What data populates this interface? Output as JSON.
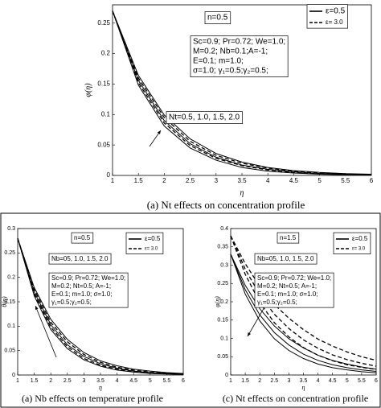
{
  "chart_data": [
    {
      "type": "line",
      "caption": "(a) Nt effects on concentration profile",
      "xlabel": "η",
      "ylabel": "φ(η)",
      "x": [
        1,
        1.5,
        2,
        2.5,
        3,
        3.5,
        4,
        4.5,
        5,
        5.5,
        6
      ],
      "xlim": [
        1,
        6
      ],
      "xticks": [
        1,
        1.5,
        2,
        2.5,
        3,
        3.5,
        4,
        4.5,
        5,
        5.5,
        6
      ],
      "ylim": [
        0,
        0.28
      ],
      "yticks": [
        0,
        0.05,
        0.1,
        0.15,
        0.2,
        0.25
      ],
      "series": [
        {
          "name": "ε=0.5",
          "color": "#000000",
          "dashed": false,
          "values": [
            0.27,
            0.164,
            0.099,
            0.06,
            0.036,
            0.022,
            0.013,
            0.008,
            0.005,
            0.003,
            0.002
          ]
        },
        {
          "color": "#000000",
          "dashed": false,
          "values": [
            0.27,
            0.156,
            0.09,
            0.052,
            0.03,
            0.017,
            0.01,
            0.006,
            0.003,
            0.002,
            0.001
          ]
        },
        {
          "color": "#000000",
          "dashed": false,
          "values": [
            0.27,
            0.148,
            0.081,
            0.045,
            0.025,
            0.013,
            0.007,
            0.004,
            0.002,
            0.001,
            0.001
          ]
        },
        {
          "name": "ε= 3.0",
          "color": "#000000",
          "dashed": true,
          "values": [
            0.27,
            0.16,
            0.095,
            0.056,
            0.033,
            0.02,
            0.012,
            0.007,
            0.004,
            0.002,
            0.001
          ]
        },
        {
          "color": "#000000",
          "dashed": true,
          "values": [
            0.27,
            0.152,
            0.086,
            0.049,
            0.028,
            0.016,
            0.009,
            0.005,
            0.003,
            0.002,
            0.001
          ]
        }
      ],
      "annotations": [
        {
          "lines": [
            "n=0.5"
          ]
        },
        {
          "lines": [
            "Sc=0.9; Pr=0.72; We=1.0;",
            "M=0.2; Nb=0.1;A=-1;",
            "E=0.1; m=1.0;",
            "σ=1.0; γ₁=0.5;γ₂=0.5;"
          ]
        },
        {
          "lines": [
            "Nt=0.5, 1.0, 1.5, 2.0"
          ]
        }
      ]
    },
    {
      "type": "line",
      "caption": "(a) Nb effects on temperature profile",
      "xlabel": "η",
      "ylabel": "θ(η)",
      "x": [
        1,
        1.5,
        2,
        2.5,
        3,
        3.5,
        4,
        4.5,
        5,
        5.5,
        6
      ],
      "xlim": [
        1,
        6
      ],
      "xticks": [
        1,
        1.5,
        2,
        2.5,
        3,
        3.5,
        4,
        4.5,
        5,
        5.5,
        6
      ],
      "ylim": [
        0,
        0.3
      ],
      "yticks": [
        0,
        0.05,
        0.1,
        0.15,
        0.2,
        0.25,
        0.3
      ],
      "series": [
        {
          "name": "ε=0.5",
          "color": "#000000",
          "dashed": false,
          "values": [
            0.28,
            0.179,
            0.114,
            0.073,
            0.046,
            0.029,
            0.019,
            0.012,
            0.008,
            0.005,
            0.003
          ]
        },
        {
          "color": "#000000",
          "dashed": false,
          "values": [
            0.28,
            0.17,
            0.103,
            0.062,
            0.038,
            0.023,
            0.014,
            0.008,
            0.005,
            0.003,
            0.002
          ]
        },
        {
          "color": "#000000",
          "dashed": false,
          "values": [
            0.28,
            0.162,
            0.093,
            0.054,
            0.031,
            0.018,
            0.01,
            0.006,
            0.003,
            0.002,
            0.001
          ]
        },
        {
          "name": "ε= 3.0",
          "color": "#000000",
          "dashed": true,
          "values": [
            0.28,
            0.175,
            0.108,
            0.068,
            0.042,
            0.026,
            0.016,
            0.01,
            0.006,
            0.004,
            0.002
          ]
        },
        {
          "color": "#000000",
          "dashed": true,
          "values": [
            0.28,
            0.166,
            0.098,
            0.058,
            0.034,
            0.02,
            0.012,
            0.007,
            0.004,
            0.003,
            0.002
          ]
        }
      ],
      "annotations": [
        {
          "lines": [
            "n=0.5"
          ]
        },
        {
          "lines": [
            "Nb=05, 1.0, 1.5, 2.0"
          ]
        },
        {
          "lines": [
            "Sc=0.9; Pr=0.72; We=1.0;",
            "M=0.2; Nt=0.5; A=-1;",
            "E=0.1; m=1.0; σ=1.0;",
            "γ₁=0.5;γ₂=0.5;"
          ]
        }
      ]
    },
    {
      "type": "line",
      "caption": "(c) Nt effects on concentration profile",
      "xlabel": "η",
      "ylabel": "φ(η)",
      "x": [
        1,
        1.5,
        2,
        2.5,
        3,
        3.5,
        4,
        4.5,
        5,
        5.5,
        6
      ],
      "xlim": [
        1,
        6
      ],
      "xticks": [
        1,
        1.5,
        2,
        2.5,
        3,
        3.5,
        4,
        4.5,
        5,
        5.5,
        6
      ],
      "ylim": [
        0,
        0.4
      ],
      "yticks": [
        0,
        0.05,
        0.1,
        0.15,
        0.2,
        0.25,
        0.3,
        0.35,
        0.4
      ],
      "series": [
        {
          "name": "ε=0.5",
          "color": "#000000",
          "dashed": false,
          "values": [
            0.33,
            0.245,
            0.181,
            0.134,
            0.099,
            0.074,
            0.054,
            0.04,
            0.03,
            0.022,
            0.016
          ]
        },
        {
          "color": "#000000",
          "dashed": false,
          "values": [
            0.33,
            0.233,
            0.164,
            0.116,
            0.082,
            0.057,
            0.04,
            0.028,
            0.02,
            0.014,
            0.01
          ]
        },
        {
          "color": "#000000",
          "dashed": false,
          "values": [
            0.33,
            0.221,
            0.148,
            0.099,
            0.067,
            0.045,
            0.03,
            0.02,
            0.014,
            0.009,
            0.006
          ]
        },
        {
          "name": "ε= 3.0",
          "color": "#000000",
          "dashed": true,
          "values": [
            0.38,
            0.304,
            0.242,
            0.193,
            0.155,
            0.124,
            0.098,
            0.079,
            0.063,
            0.05,
            0.04
          ]
        },
        {
          "color": "#000000",
          "dashed": true,
          "values": [
            0.38,
            0.289,
            0.219,
            0.166,
            0.127,
            0.096,
            0.073,
            0.055,
            0.042,
            0.032,
            0.024
          ]
        },
        {
          "color": "#000000",
          "dashed": true,
          "values": [
            0.38,
            0.275,
            0.198,
            0.143,
            0.104,
            0.075,
            0.054,
            0.039,
            0.028,
            0.021,
            0.015
          ]
        }
      ],
      "annotations": [
        {
          "lines": [
            "n=1.5"
          ]
        },
        {
          "lines": [
            "Nb=05, 1.0, 1.5, 2.0"
          ]
        },
        {
          "lines": [
            "Sc=0.9; Pr=0.72; We=1.0;",
            "M=0.2; Nt=0.5; A=-1;",
            "E=0.1; m=1.0; σ=1.0;",
            "γ₁=0.5;γ₂=0.5;"
          ]
        }
      ]
    }
  ]
}
